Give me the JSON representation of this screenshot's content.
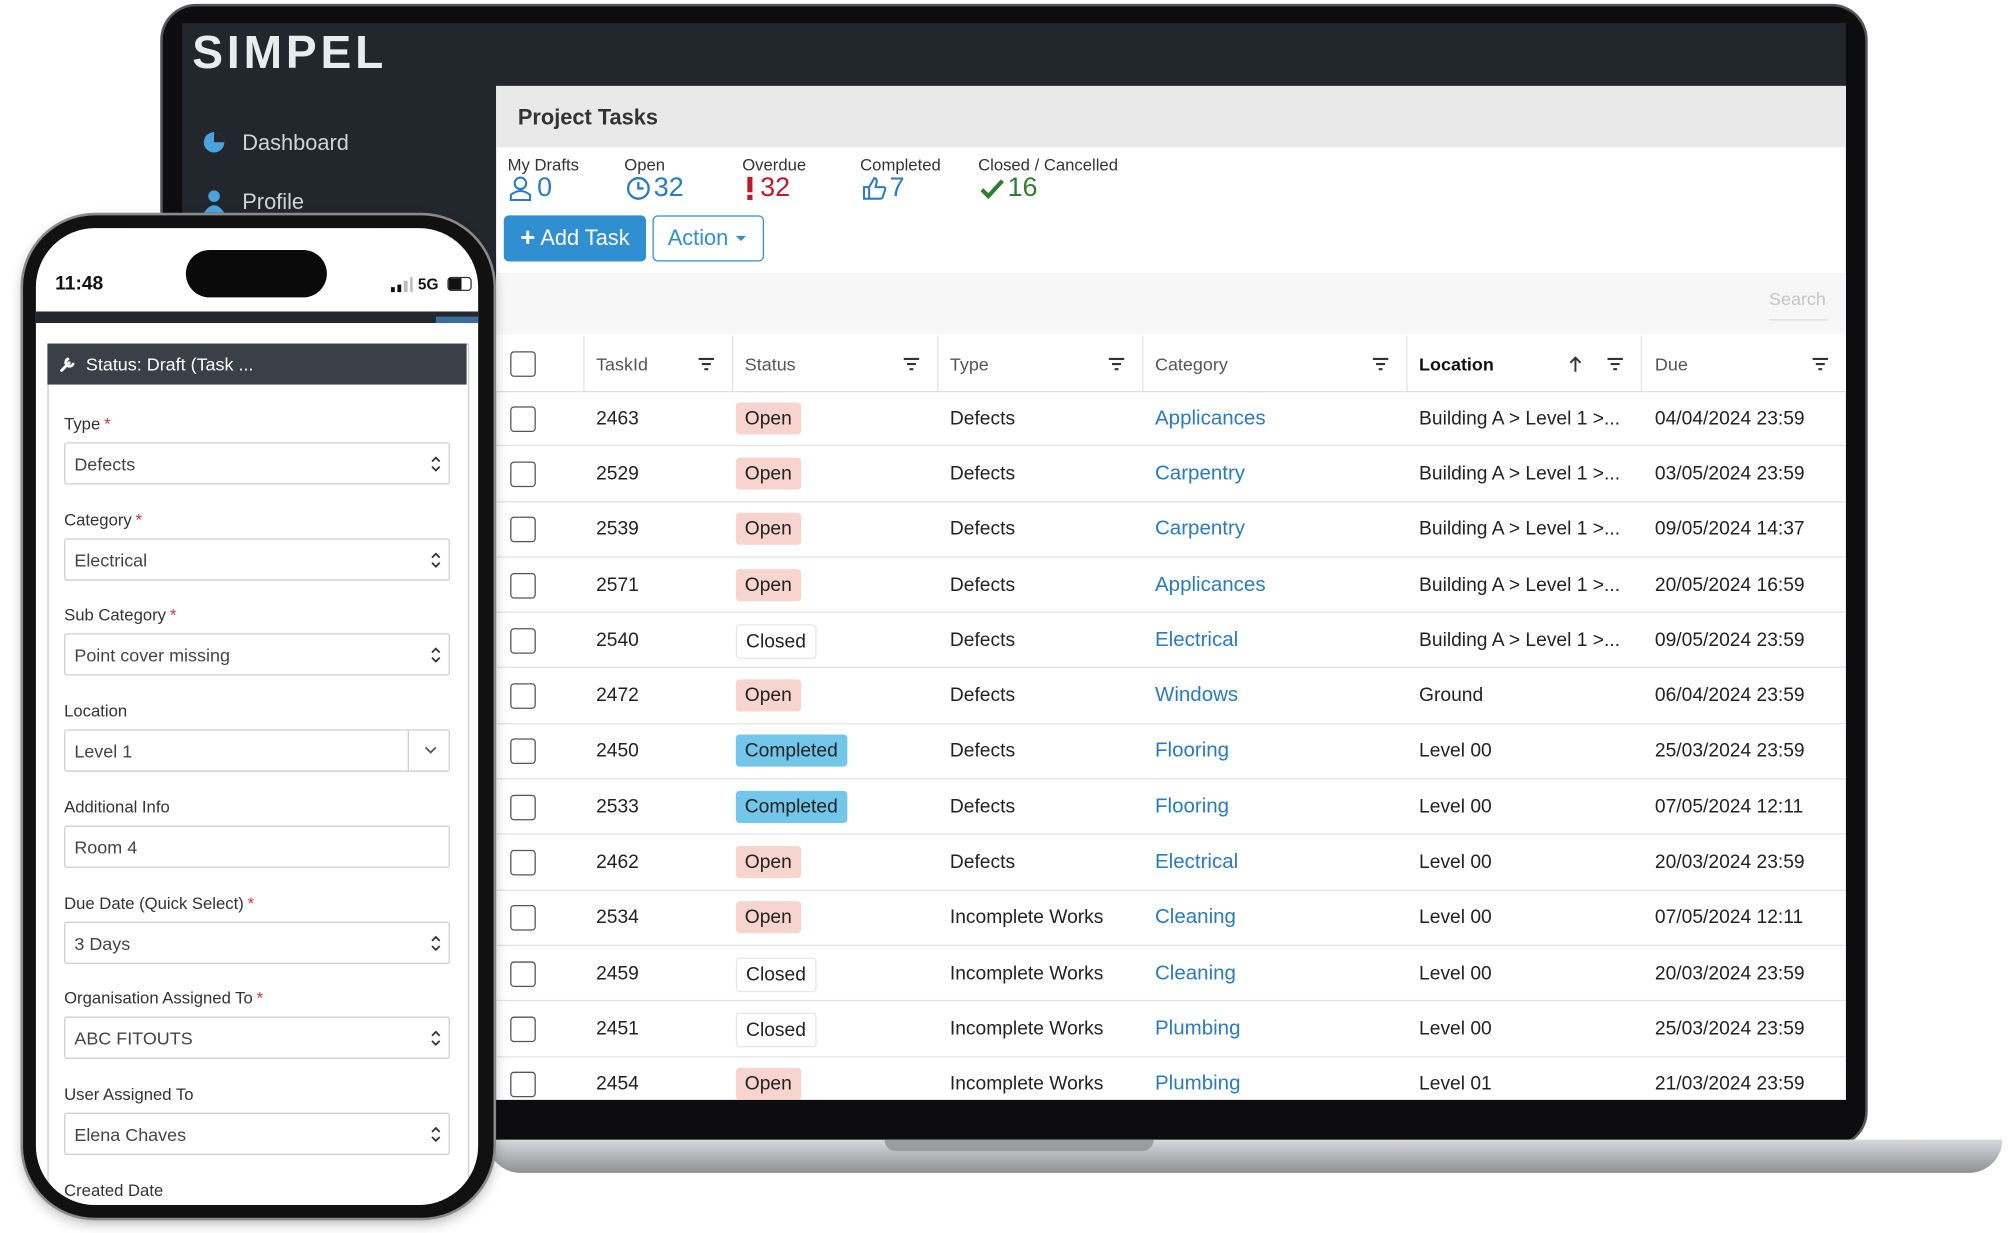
{
  "brand": "SIMPEL",
  "sidebar": {
    "items": [
      "Dashboard",
      "Profile"
    ]
  },
  "page": {
    "title": "Project Tasks",
    "stats": [
      {
        "label": "My Drafts",
        "value": 0,
        "color": "#2a7bbf"
      },
      {
        "label": "Open",
        "value": 32,
        "color": "#2a7bbf"
      },
      {
        "label": "Overdue",
        "value": 32,
        "color": "#c0182b"
      },
      {
        "label": "Completed",
        "value": 7,
        "color": "#2a7bbf"
      },
      {
        "label": "Closed / Cancelled",
        "value": 16,
        "color": "#2e7d32"
      }
    ],
    "buttons": {
      "add": "Add Task",
      "action": "Action"
    },
    "search_placeholder": "Search",
    "table": {
      "columns": [
        "TaskId",
        "Status",
        "Type",
        "Category",
        "Location",
        "Due"
      ],
      "sort": {
        "column": 4,
        "direction": "asc"
      },
      "rows": [
        [
          2463,
          "Open",
          "Defects",
          "Applicances",
          "Building A > Level 1 >...",
          "04/04/2024 23:59"
        ],
        [
          2529,
          "Open",
          "Defects",
          "Carpentry",
          "Building A > Level 1 >...",
          "03/05/2024 23:59"
        ],
        [
          2539,
          "Open",
          "Defects",
          "Carpentry",
          "Building A > Level 1 >...",
          "09/05/2024 14:37"
        ],
        [
          2571,
          "Open",
          "Defects",
          "Applicances",
          "Building A > Level 1 >...",
          "20/05/2024 16:59"
        ],
        [
          2540,
          "Closed",
          "Defects",
          "Electrical",
          "Building A > Level 1 >...",
          "09/05/2024 23:59"
        ],
        [
          2472,
          "Open",
          "Defects",
          "Windows",
          "Ground",
          "06/04/2024 23:59"
        ],
        [
          2450,
          "Completed",
          "Defects",
          "Flooring",
          "Level 00",
          "25/03/2024 23:59"
        ],
        [
          2533,
          "Completed",
          "Defects",
          "Flooring",
          "Level 00",
          "07/05/2024 12:11"
        ],
        [
          2462,
          "Open",
          "Defects",
          "Electrical",
          "Level 00",
          "20/03/2024 23:59"
        ],
        [
          2534,
          "Open",
          "Incomplete Works",
          "Cleaning",
          "Level 00",
          "07/05/2024 12:11"
        ],
        [
          2459,
          "Closed",
          "Incomplete Works",
          "Cleaning",
          "Level 00",
          "20/03/2024 23:59"
        ],
        [
          2451,
          "Closed",
          "Incomplete Works",
          "Plumbing",
          "Level 00",
          "25/03/2024 23:59"
        ],
        [
          2454,
          "Open",
          "Incomplete Works",
          "Plumbing",
          "Level 01",
          "21/03/2024 23:59"
        ]
      ]
    }
  },
  "phone": {
    "time": "11:48",
    "network": "5G",
    "form_title": "Status: Draft (Task ...",
    "required_mark": "*",
    "fields": [
      {
        "label": "Type",
        "required": true,
        "value": "Defects",
        "kind": "select"
      },
      {
        "label": "Category",
        "required": true,
        "value": "Electrical",
        "kind": "select"
      },
      {
        "label": "Sub Category",
        "required": true,
        "value": "Point cover missing",
        "kind": "select"
      },
      {
        "label": "Location",
        "required": false,
        "value": "Level 1",
        "kind": "dropdown"
      },
      {
        "label": "Additional Info",
        "required": false,
        "value": "Room 4",
        "kind": "text"
      },
      {
        "label": "Due Date (Quick Select)",
        "required": true,
        "value": "3 Days",
        "kind": "select"
      },
      {
        "label": "Organisation Assigned To",
        "required": true,
        "value": "ABC FITOUTS",
        "kind": "select"
      },
      {
        "label": "User Assigned To",
        "required": false,
        "value": "Elena Chaves",
        "kind": "select"
      },
      {
        "label": "Created Date",
        "required": false
      }
    ]
  }
}
